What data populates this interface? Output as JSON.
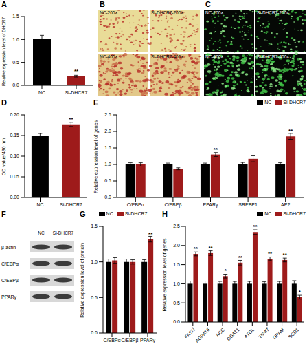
{
  "chart_data": [
    {
      "title": "A",
      "type": "bar",
      "ylabel": "Relative expression level of DHCR7",
      "categories": [
        "NC",
        "Si-DHCR7"
      ],
      "values": [
        1.01,
        0.2
      ],
      "errors": [
        0.08,
        0.02
      ],
      "significance": [
        null,
        "**"
      ],
      "colors": [
        "#000000",
        "#9e1b1b"
      ],
      "ylim": [
        0,
        1.5
      ],
      "yticks": [
        {
          "value": 0,
          "label": "0.0"
        },
        0.5,
        {
          "value": 1,
          "label": "1.0"
        },
        1.5
      ],
      "grid": false
    },
    {
      "title": "D",
      "type": "bar",
      "ylabel": "OD value/490 nm",
      "categories": [
        "NC",
        "Si-DHCR7"
      ],
      "values": [
        0.149,
        0.177
      ],
      "errors": [
        0.006,
        0.005
      ],
      "significance": [
        null,
        "**"
      ],
      "colors": [
        "#000000",
        "#9e1b1b"
      ],
      "ylim": [
        0,
        0.2
      ],
      "yticks": [
        {
          "value": 0,
          "label": "0.00"
        },
        0.05,
        {
          "value": 0.1,
          "label": "0.10"
        },
        0.15,
        {
          "value": 0.2,
          "label": "0.20"
        }
      ],
      "grid": false
    },
    {
      "title": "E",
      "type": "bar",
      "ylabel": "Relative expression level of genes",
      "categories": [
        "C/EBPα",
        "C/EBPβ",
        "PPARγ",
        "SREBP1",
        "AP2"
      ],
      "series": [
        {
          "name": "NC",
          "color": "#000000",
          "values": [
            1,
            1,
            1,
            1,
            1
          ],
          "errors": [
            0.05,
            0.04,
            0.04,
            0.06,
            0.05
          ]
        },
        {
          "name": "Si-DHCR7",
          "color": "#9e1b1b",
          "values": [
            1.0,
            0.87,
            1.3,
            1.17,
            1.85
          ],
          "errors": [
            0.05,
            0.03,
            0.06,
            0.09,
            0.09
          ],
          "significance": [
            null,
            null,
            "**",
            null,
            "**"
          ]
        }
      ],
      "legend": "upper right",
      "ylim": [
        0,
        2.5
      ],
      "yticks": [
        {
          "value": 0,
          "label": "0.0"
        },
        0.5,
        {
          "value": 1,
          "label": "1.0"
        },
        1.5,
        {
          "value": 2,
          "label": "2.0"
        },
        2.5
      ],
      "grid": false
    },
    {
      "title": "G",
      "type": "bar",
      "ylabel": "Relative expression level of protein",
      "categories": [
        "C/EBPα",
        "C/EBPβ",
        "PPARγ"
      ],
      "series": [
        {
          "name": "NC",
          "color": "#000000",
          "values": [
            1,
            1,
            1
          ],
          "errors": [
            0.04,
            0.04,
            0.03
          ]
        },
        {
          "name": "Si-DHCR7",
          "color": "#9e1b1b",
          "values": [
            1.02,
            1.0,
            1.32
          ],
          "errors": [
            0.04,
            0.03,
            0.04
          ],
          "significance": [
            null,
            null,
            "**"
          ]
        }
      ],
      "legend": "upper center",
      "ylim": [
        0,
        1.5
      ],
      "yticks": [
        {
          "value": 0,
          "label": "0.0"
        },
        0.5,
        {
          "value": 1,
          "label": "1.0"
        },
        1.5
      ],
      "grid": false
    },
    {
      "title": "H",
      "type": "bar",
      "ylabel": "Relative expression level of genes",
      "categories": [
        "FASN",
        "AGPAT6",
        "ACC",
        "DGAT1",
        "ATGL",
        "TIP47",
        "GPAM",
        "SCD1"
      ],
      "series": [
        {
          "name": "NC",
          "color": "#000000",
          "values": [
            1,
            1,
            1,
            1,
            1,
            1,
            1,
            1
          ],
          "errors": [
            0.07,
            0.07,
            0.06,
            0.06,
            0.06,
            0.05,
            0.06,
            0.08
          ]
        },
        {
          "name": "Si-DHCR7",
          "color": "#9e1b1b",
          "values": [
            1.78,
            1.8,
            1.2,
            1.55,
            2.35,
            1.65,
            1.62,
            0.65
          ],
          "errors": [
            0.05,
            0.06,
            0.05,
            0.06,
            0.06,
            0.05,
            0.05,
            0.05
          ],
          "significance": [
            "**",
            "**",
            "*",
            "**",
            "**",
            "**",
            "**",
            "*"
          ]
        }
      ],
      "legend": "upper right",
      "ylim": [
        0,
        2.5
      ],
      "yticks": [
        {
          "value": 0,
          "label": "0.0"
        },
        0.5,
        {
          "value": 1,
          "label": "1.0"
        },
        1.5,
        {
          "value": 2,
          "label": "2.0"
        },
        2.5
      ],
      "grid": false
    }
  ],
  "images": [
    {
      "title": "B",
      "panels": [
        [
          "NC-200×",
          "Si-DHCR7-200×"
        ],
        [
          "NC-400×",
          "Si-DHCR7-400×"
        ]
      ]
    },
    {
      "title": "C",
      "panels": [
        [
          "NC-200×",
          "Si-DHCR7-200×"
        ],
        [
          "NC-400×",
          "Si-DHCR7-400×"
        ]
      ]
    }
  ],
  "blot": {
    "title": "F",
    "lanes": [
      "NC",
      "Si-DHCR7"
    ],
    "rows": [
      "β-actin",
      "C/EBPα",
      "C/EBPβ",
      "PPARγ"
    ]
  }
}
